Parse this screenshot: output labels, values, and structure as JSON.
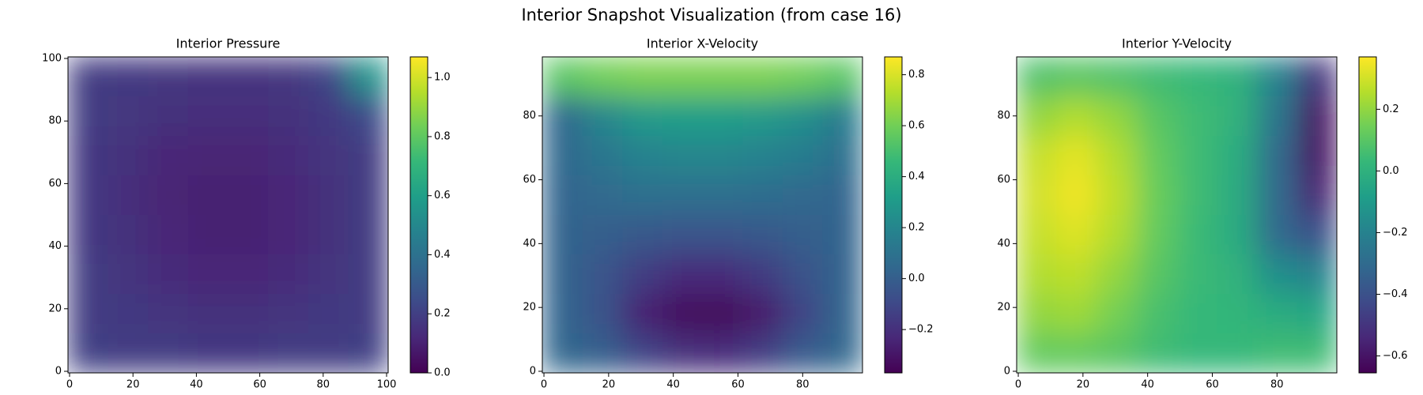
{
  "title": "Interior Snapshot Visualization (from case 16)",
  "chart_data": [
    {
      "type": "heatmap",
      "title": "Interior Pressure",
      "colormap": "viridis",
      "xlim": [
        -0.5,
        100.5
      ],
      "ylim": [
        -0.5,
        100.5
      ],
      "xticks": [
        0,
        20,
        40,
        60,
        80,
        100
      ],
      "yticks": [
        0,
        20,
        40,
        60,
        80,
        100
      ],
      "clim": [
        0,
        1.07
      ],
      "cticks": [
        {
          "value": 0,
          "label": "0.0"
        },
        0.2,
        0.4,
        0.6,
        0.8,
        {
          "value": 1,
          "label": "1.0"
        }
      ],
      "z": [
        [
          0.19,
          0.18,
          0.17,
          0.16,
          0.16,
          0.17,
          0.22,
          0.55
        ],
        [
          0.19,
          0.17,
          0.15,
          0.14,
          0.14,
          0.15,
          0.18,
          0.24
        ],
        [
          0.18,
          0.15,
          0.12,
          0.11,
          0.11,
          0.13,
          0.16,
          0.19
        ],
        [
          0.18,
          0.14,
          0.11,
          0.1,
          0.1,
          0.12,
          0.15,
          0.19
        ],
        [
          0.18,
          0.15,
          0.12,
          0.1,
          0.1,
          0.12,
          0.15,
          0.19
        ],
        [
          0.19,
          0.16,
          0.13,
          0.12,
          0.12,
          0.13,
          0.16,
          0.19
        ],
        [
          0.19,
          0.18,
          0.16,
          0.15,
          0.15,
          0.16,
          0.18,
          0.19
        ],
        [
          0.2,
          0.19,
          0.19,
          0.18,
          0.18,
          0.19,
          0.19,
          0.2
        ]
      ]
    },
    {
      "type": "heatmap",
      "title": "Interior X-Velocity",
      "colormap": "viridis",
      "xlim": [
        -0.5,
        98.5
      ],
      "ylim": [
        -0.5,
        98.5
      ],
      "xticks": [
        0,
        20,
        40,
        60,
        80
      ],
      "yticks": [
        0,
        20,
        40,
        60,
        80
      ],
      "clim": [
        -0.37,
        0.87
      ],
      "cticks": [
        {
          "value": -0.2,
          "label": "−0.2"
        },
        {
          "value": 0,
          "label": "0.0"
        },
        0.2,
        0.4,
        0.6,
        0.8
      ],
      "z": [
        [
          0.55,
          0.6,
          0.62,
          0.62,
          0.62,
          0.62,
          0.6,
          0.55
        ],
        [
          0.05,
          0.2,
          0.3,
          0.32,
          0.32,
          0.3,
          0.25,
          0.15
        ],
        [
          0.05,
          0.12,
          0.18,
          0.2,
          0.2,
          0.18,
          0.15,
          0.08
        ],
        [
          0.03,
          0.06,
          0.08,
          0.08,
          0.08,
          0.07,
          0.05,
          0.03
        ],
        [
          0.02,
          0.0,
          -0.03,
          -0.05,
          -0.05,
          -0.03,
          0.0,
          0.02
        ],
        [
          0.02,
          -0.05,
          -0.15,
          -0.22,
          -0.22,
          -0.16,
          -0.06,
          0.02
        ],
        [
          0.03,
          -0.06,
          -0.25,
          -0.33,
          -0.34,
          -0.28,
          -0.12,
          0.03
        ],
        [
          0.04,
          0.0,
          -0.12,
          -0.2,
          -0.22,
          -0.15,
          -0.02,
          0.04
        ]
      ]
    },
    {
      "type": "heatmap",
      "title": "Interior Y-Velocity",
      "colormap": "viridis",
      "xlim": [
        -0.5,
        98.5
      ],
      "ylim": [
        -0.5,
        98.5
      ],
      "xticks": [
        0,
        20,
        40,
        60,
        80
      ],
      "yticks": [
        0,
        20,
        40,
        60,
        80
      ],
      "clim": [
        -0.655,
        0.37
      ],
      "cticks": [
        {
          "value": -0.6,
          "label": "−0.6"
        },
        {
          "value": -0.4,
          "label": "−0.4"
        },
        {
          "value": -0.2,
          "label": "−0.2"
        },
        {
          "value": 0,
          "label": "0.0"
        },
        0.2
      ],
      "z": [
        [
          0.08,
          0.1,
          0.08,
          0.05,
          0.03,
          0.0,
          -0.2,
          -0.5
        ],
        [
          0.2,
          0.25,
          0.2,
          0.1,
          0.05,
          0.0,
          -0.25,
          -0.6
        ],
        [
          0.28,
          0.33,
          0.25,
          0.12,
          0.05,
          -0.02,
          -0.3,
          -0.6
        ],
        [
          0.3,
          0.35,
          0.27,
          0.13,
          0.05,
          -0.03,
          -0.3,
          -0.55
        ],
        [
          0.28,
          0.32,
          0.25,
          0.12,
          0.04,
          -0.03,
          -0.3,
          -0.4
        ],
        [
          0.25,
          0.27,
          0.2,
          0.1,
          0.04,
          0.0,
          -0.15,
          -0.2
        ],
        [
          0.2,
          0.22,
          0.15,
          0.07,
          0.03,
          0.02,
          -0.02,
          -0.05
        ],
        [
          0.12,
          0.12,
          0.1,
          0.05,
          0.03,
          0.03,
          0.05,
          0.05
        ]
      ]
    }
  ]
}
